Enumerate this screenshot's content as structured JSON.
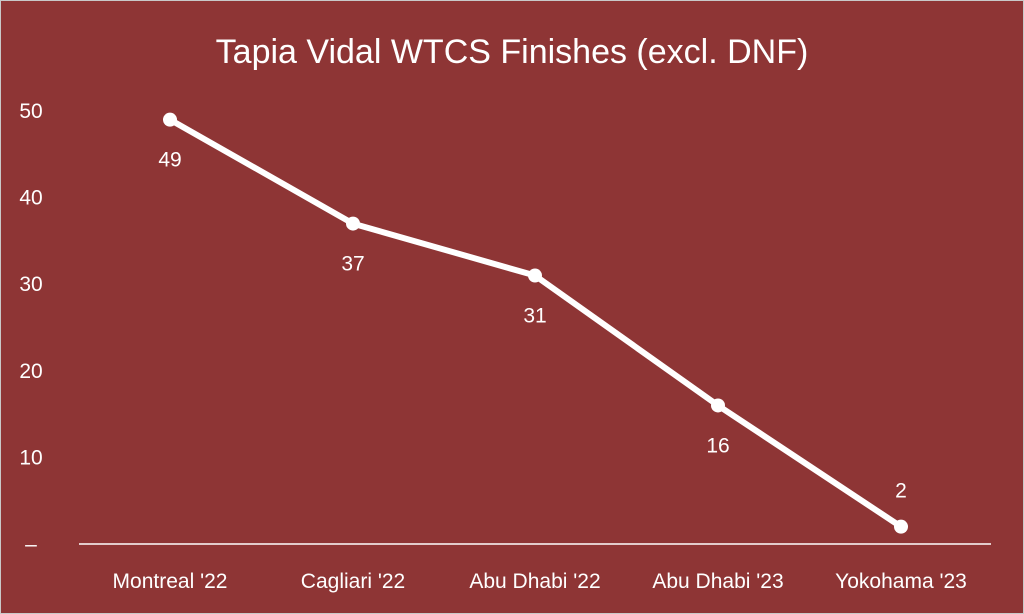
{
  "chart_data": {
    "type": "line",
    "title": "Tapia Vidal WTCS Finishes (excl. DNF)",
    "xlabel": "",
    "ylabel": "",
    "categories": [
      "Montreal '22",
      "Cagliari '22",
      "Abu Dhabi '22",
      "Abu Dhabi '23",
      "Yokohama '23"
    ],
    "values": [
      49,
      37,
      31,
      16,
      2
    ],
    "ylim": [
      0,
      50
    ],
    "yticks": [
      "–",
      "10",
      "20",
      "30",
      "40",
      "50"
    ],
    "grid": false,
    "legend": "none",
    "data_labels": true
  },
  "colors": {
    "background": "#8e3535",
    "line": "#ffffff",
    "text": "#ffffff"
  }
}
